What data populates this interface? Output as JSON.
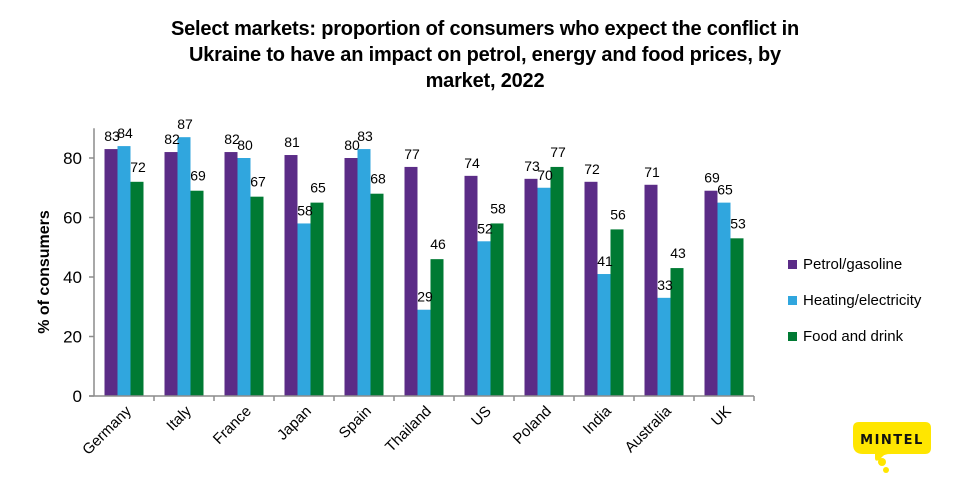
{
  "chart_data": {
    "type": "bar",
    "title": "Select markets: proportion of consumers who expect the conflict in Ukraine to have an impact on petrol, energy and food prices, by market, 2022",
    "title_lines": [
      "Select markets: proportion of consumers who expect the conflict in",
      "Ukraine to have an impact on petrol, energy and food prices, by",
      "market, 2022"
    ],
    "xlabel": "",
    "ylabel": "% of consumers",
    "ylim": [
      0,
      90
    ],
    "yticks": [
      0,
      20,
      40,
      60,
      80
    ],
    "grid": false,
    "legend_position": "right",
    "categories": [
      "Germany",
      "Italy",
      "France",
      "Japan",
      "Spain",
      "Thailand",
      "US",
      "Poland",
      "India",
      "Australia",
      "UK"
    ],
    "series": [
      {
        "name": "Petrol/gasoline",
        "color": "#5B2C87",
        "values": [
          83,
          82,
          82,
          81,
          80,
          77,
          74,
          73,
          72,
          71,
          69
        ]
      },
      {
        "name": "Heating/electricity",
        "color": "#30A6DE",
        "values": [
          84,
          87,
          80,
          58,
          83,
          29,
          52,
          70,
          41,
          33,
          65
        ]
      },
      {
        "name": "Food and drink",
        "color": "#007A33",
        "values": [
          72,
          69,
          67,
          65,
          68,
          46,
          58,
          77,
          56,
          43,
          53
        ]
      }
    ]
  },
  "logo": {
    "text": "MINTEL",
    "color": "#FFE600"
  }
}
